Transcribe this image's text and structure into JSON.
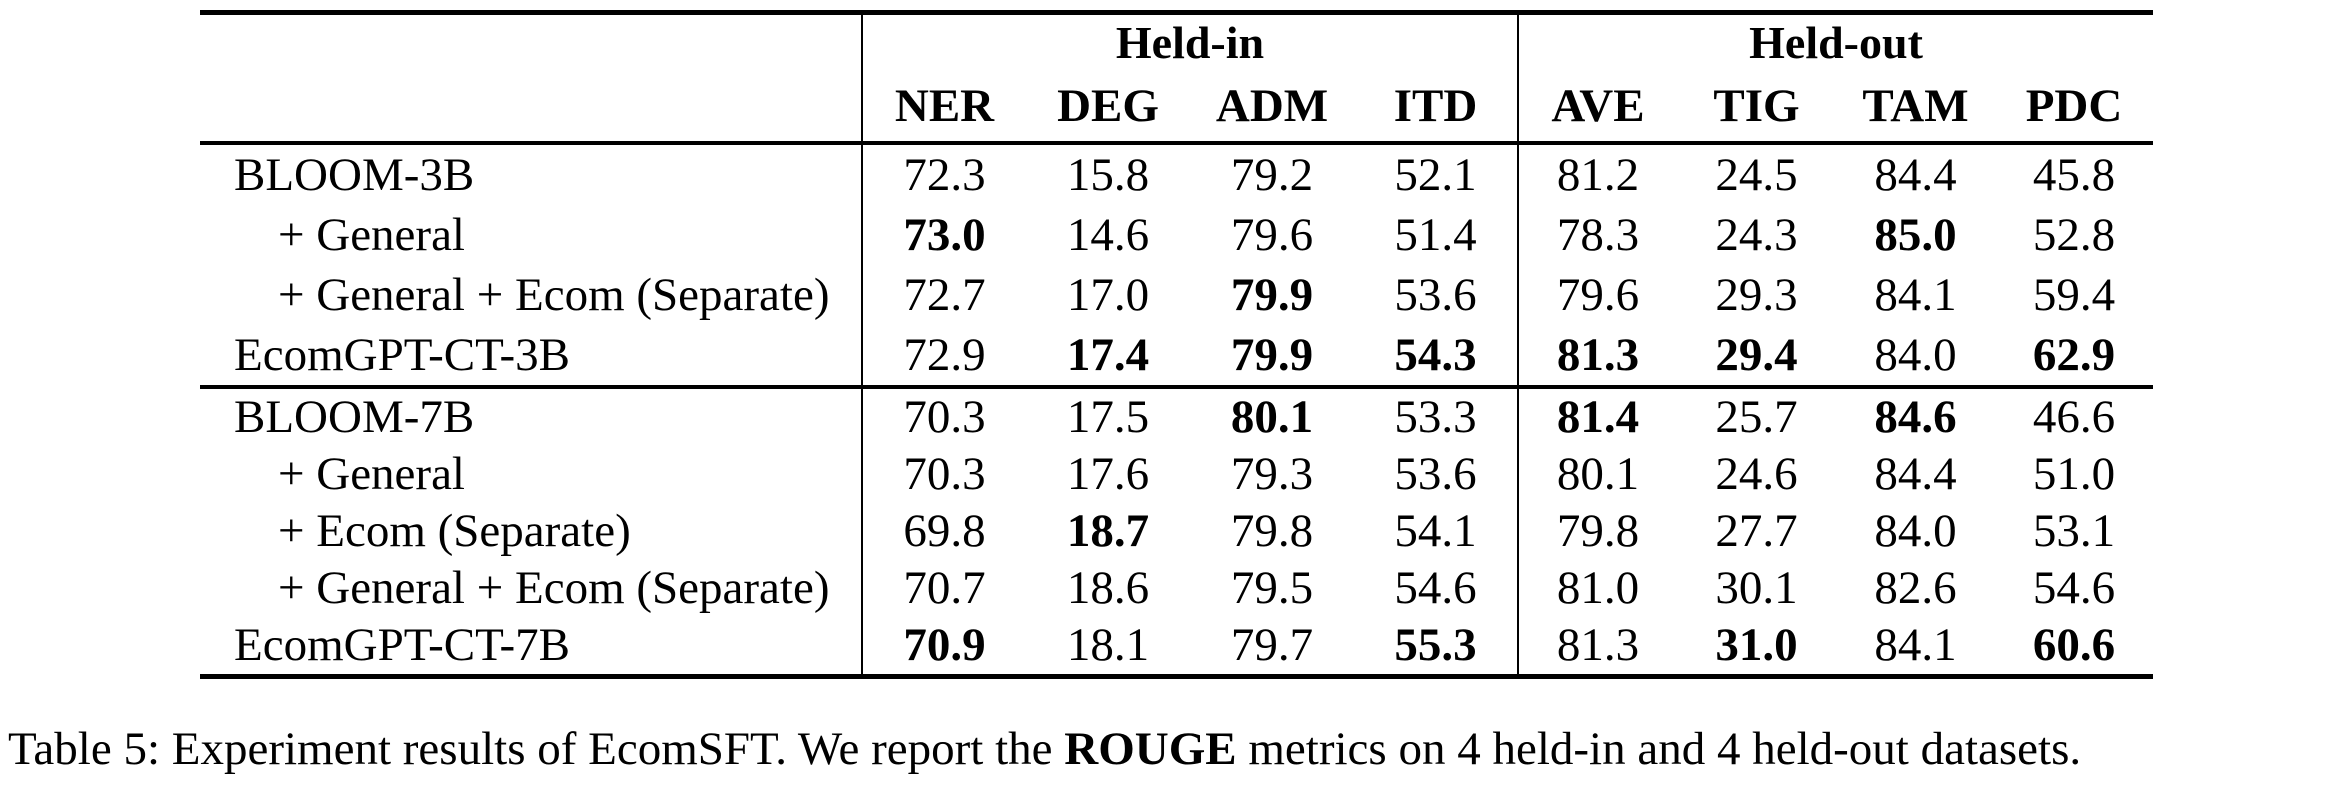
{
  "page": {
    "background": "#ffffff",
    "text_color": "#000000"
  },
  "table": {
    "col_groups": [
      {
        "label": "Held-in",
        "columns": [
          "NER",
          "DEG",
          "ADM",
          "ITD"
        ]
      },
      {
        "label": "Held-out",
        "columns": [
          "AVE",
          "TIG",
          "TAM",
          "PDC"
        ]
      }
    ],
    "groups": [
      {
        "rows": [
          {
            "label": "BLOOM-3B",
            "indent": false,
            "cells": [
              {
                "v": "72.3",
                "b": false
              },
              {
                "v": "15.8",
                "b": false
              },
              {
                "v": "79.2",
                "b": false
              },
              {
                "v": "52.1",
                "b": false
              },
              {
                "v": "81.2",
                "b": false
              },
              {
                "v": "24.5",
                "b": false
              },
              {
                "v": "84.4",
                "b": false
              },
              {
                "v": "45.8",
                "b": false
              }
            ]
          },
          {
            "label": "+ General",
            "indent": true,
            "cells": [
              {
                "v": "73.0",
                "b": true
              },
              {
                "v": "14.6",
                "b": false
              },
              {
                "v": "79.6",
                "b": false
              },
              {
                "v": "51.4",
                "b": false
              },
              {
                "v": "78.3",
                "b": false
              },
              {
                "v": "24.3",
                "b": false
              },
              {
                "v": "85.0",
                "b": true
              },
              {
                "v": "52.8",
                "b": false
              }
            ]
          },
          {
            "label": "+ General + Ecom (Separate)",
            "indent": true,
            "cells": [
              {
                "v": "72.7",
                "b": false
              },
              {
                "v": "17.0",
                "b": false
              },
              {
                "v": "79.9",
                "b": true
              },
              {
                "v": "53.6",
                "b": false
              },
              {
                "v": "79.6",
                "b": false
              },
              {
                "v": "29.3",
                "b": false
              },
              {
                "v": "84.1",
                "b": false
              },
              {
                "v": "59.4",
                "b": false
              }
            ]
          },
          {
            "label": "EcomGPT-CT-3B",
            "indent": false,
            "cells": [
              {
                "v": "72.9",
                "b": false
              },
              {
                "v": "17.4",
                "b": true
              },
              {
                "v": "79.9",
                "b": true
              },
              {
                "v": "54.3",
                "b": true
              },
              {
                "v": "81.3",
                "b": true
              },
              {
                "v": "29.4",
                "b": true
              },
              {
                "v": "84.0",
                "b": false
              },
              {
                "v": "62.9",
                "b": true
              }
            ]
          }
        ]
      },
      {
        "rows": [
          {
            "label": "BLOOM-7B",
            "indent": false,
            "cells": [
              {
                "v": "70.3",
                "b": false
              },
              {
                "v": "17.5",
                "b": false
              },
              {
                "v": "80.1",
                "b": true
              },
              {
                "v": "53.3",
                "b": false
              },
              {
                "v": "81.4",
                "b": true
              },
              {
                "v": "25.7",
                "b": false
              },
              {
                "v": "84.6",
                "b": true
              },
              {
                "v": "46.6",
                "b": false
              }
            ]
          },
          {
            "label": "+ General",
            "indent": true,
            "cells": [
              {
                "v": "70.3",
                "b": false
              },
              {
                "v": "17.6",
                "b": false
              },
              {
                "v": "79.3",
                "b": false
              },
              {
                "v": "53.6",
                "b": false
              },
              {
                "v": "80.1",
                "b": false
              },
              {
                "v": "24.6",
                "b": false
              },
              {
                "v": "84.4",
                "b": false
              },
              {
                "v": "51.0",
                "b": false
              }
            ]
          },
          {
            "label": "+ Ecom (Separate)",
            "indent": true,
            "cells": [
              {
                "v": "69.8",
                "b": false
              },
              {
                "v": "18.7",
                "b": true
              },
              {
                "v": "79.8",
                "b": false
              },
              {
                "v": "54.1",
                "b": false
              },
              {
                "v": "79.8",
                "b": false
              },
              {
                "v": "27.7",
                "b": false
              },
              {
                "v": "84.0",
                "b": false
              },
              {
                "v": "53.1",
                "b": false
              }
            ]
          },
          {
            "label": "+ General + Ecom (Separate)",
            "indent": true,
            "cells": [
              {
                "v": "70.7",
                "b": false
              },
              {
                "v": "18.6",
                "b": false
              },
              {
                "v": "79.5",
                "b": false
              },
              {
                "v": "54.6",
                "b": false
              },
              {
                "v": "81.0",
                "b": false
              },
              {
                "v": "30.1",
                "b": false
              },
              {
                "v": "82.6",
                "b": false
              },
              {
                "v": "54.6",
                "b": false
              }
            ]
          },
          {
            "label": "EcomGPT-CT-7B",
            "indent": false,
            "cells": [
              {
                "v": "70.9",
                "b": true
              },
              {
                "v": "18.1",
                "b": false
              },
              {
                "v": "79.7",
                "b": false
              },
              {
                "v": "55.3",
                "b": true
              },
              {
                "v": "81.3",
                "b": false
              },
              {
                "v": "31.0",
                "b": true
              },
              {
                "v": "84.1",
                "b": false
              },
              {
                "v": "60.6",
                "b": true
              }
            ]
          }
        ]
      }
    ]
  },
  "caption": {
    "prefix": "Table 5: Experiment results of EcomSFT. We report the ",
    "bold_text": "ROUGE",
    "suffix": " metrics on 4 held-in and 4 held-out datasets."
  }
}
